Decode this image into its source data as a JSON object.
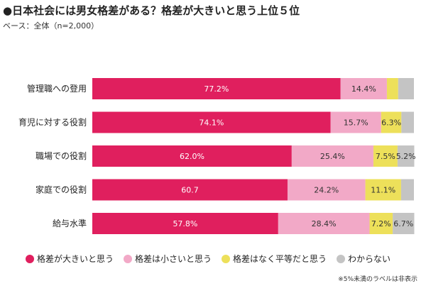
{
  "title": "●日本社会には男女格差がある？格差が大きいと思う上位５位",
  "subtitle": "ベース：全体（n=2,000）",
  "note": "※5%未満のラベルは非表示",
  "chart_data": {
    "type": "bar",
    "orientation": "horizontal",
    "stacked": true,
    "percent": true,
    "categories": [
      "管理職への登用",
      "育児に対する役割",
      "職場での役割",
      "家庭での役割",
      "給与水準"
    ],
    "series": [
      {
        "name": "格差が大きいと思う",
        "color": "#e01f5e",
        "values": [
          77.2,
          74.1,
          62.0,
          60.7,
          57.8
        ],
        "labels": [
          "77.2%",
          "74.1%",
          "62.0%",
          "60.7",
          "57.8%"
        ]
      },
      {
        "name": "格差は小さいと思う",
        "color": "#f2a9c7",
        "values": [
          14.4,
          15.7,
          25.4,
          24.2,
          28.4
        ],
        "labels": [
          "14.4%",
          "15.7%",
          "25.4%",
          "24.2%",
          "28.4%"
        ]
      },
      {
        "name": "格差はなく平等だと思う",
        "color": "#ede05a",
        "values": [
          3.5,
          6.3,
          7.5,
          11.1,
          7.2
        ],
        "labels": [
          "",
          "6.3%",
          "7.5%",
          "11.1%",
          "7.2%"
        ]
      },
      {
        "name": "わからない",
        "color": "#c4c4c4",
        "values": [
          4.9,
          3.9,
          5.2,
          4.0,
          6.7
        ],
        "labels": [
          "",
          "",
          "5.2%",
          "",
          "6.7%"
        ]
      }
    ],
    "xlim": [
      0,
      100
    ],
    "grid": false,
    "legend_position": "bottom"
  }
}
